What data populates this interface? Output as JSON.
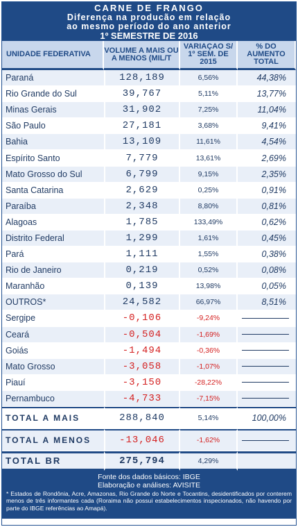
{
  "title": {
    "line1": "CARNE DE FRANGO",
    "line2": "Diferença na producão em relação",
    "line3": "ao mesmo período do ano anterior",
    "line4": "1º SEMESTRE DE 2016"
  },
  "headers": {
    "uf": "UNIDADE FEDERATIVA",
    "volume": "VOLUME A MAIS OU A MENOS (MIL/T",
    "variacao": "VARIAÇAO S/ 1º SEM. DE 2015",
    "aumento": "% DO AUMENTO TOTAL"
  },
  "rows": [
    {
      "uf": "Paraná",
      "volume": "128,189",
      "variacao": "6,56%",
      "aumento": "44,38%"
    },
    {
      "uf": "Rio Grande do Sul",
      "volume": "39,767",
      "variacao": "5,11%",
      "aumento": "13,77%"
    },
    {
      "uf": "Minas Gerais",
      "volume": "31,902",
      "variacao": "7,25%",
      "aumento": "11,04%"
    },
    {
      "uf": "São Paulo",
      "volume": "27,181",
      "variacao": "3,68%",
      "aumento": "9,41%"
    },
    {
      "uf": "Bahia",
      "volume": "13,109",
      "variacao": "11,61%",
      "aumento": "4,54%"
    },
    {
      "uf": "Espírito Santo",
      "volume": "7,779",
      "variacao": "13,61%",
      "aumento": "2,69%"
    },
    {
      "uf": "Mato Grosso do Sul",
      "volume": "6,799",
      "variacao": "9,15%",
      "aumento": "2,35%"
    },
    {
      "uf": "Santa Catarina",
      "volume": "2,629",
      "variacao": "0,25%",
      "aumento": "0,91%"
    },
    {
      "uf": "Paraíba",
      "volume": "2,348",
      "variacao": "8,80%",
      "aumento": "0,81%"
    },
    {
      "uf": "Alagoas",
      "volume": "1,785",
      "variacao": "133,49%",
      "aumento": "0,62%"
    },
    {
      "uf": "Distrito Federal",
      "volume": "1,299",
      "variacao": "1,61%",
      "aumento": "0,45%"
    },
    {
      "uf": "Pará",
      "volume": "1,111",
      "variacao": "1,55%",
      "aumento": "0,38%"
    },
    {
      "uf": "Rio de Janeiro",
      "volume": "0,219",
      "variacao": "0,52%",
      "aumento": "0,08%"
    },
    {
      "uf": "Maranhão",
      "volume": "0,139",
      "variacao": "13,98%",
      "aumento": "0,05%"
    },
    {
      "uf": "OUTROS*",
      "volume": "24,582",
      "variacao": "66,97%",
      "aumento": "8,51%"
    }
  ],
  "negative_rows": [
    {
      "uf": "Sergipe",
      "volume": "-0,106",
      "variacao": "-9,24%"
    },
    {
      "uf": "Ceará",
      "volume": "-0,504",
      "variacao": "-1,69%"
    },
    {
      "uf": "Goiás",
      "volume": "-1,494",
      "variacao": "-0,36%"
    },
    {
      "uf": "Mato Grosso",
      "volume": "-3,058",
      "variacao": "-1,07%"
    },
    {
      "uf": "Piauí",
      "volume": "-3,150",
      "variacao": "-28,22%"
    },
    {
      "uf": "Pernambuco",
      "volume": "-4,733",
      "variacao": "-7,15%"
    }
  ],
  "totals": {
    "mais": {
      "label": "TOTAL A MAIS",
      "volume": "288,840",
      "variacao": "5,14%",
      "aumento": "100,00%"
    },
    "menos": {
      "label": "TOTAL A MENOS",
      "volume": "-13,046",
      "variacao": "-1,62%"
    },
    "br": {
      "label": "TOTAL BR",
      "volume": "275,794",
      "variacao": "4,29%"
    }
  },
  "footer": {
    "fonte": "Fonte dos dados básicos: IBGE",
    "elaboracao": "Elaboração e análises: AVISITE",
    "nota": "* Estados de Rondônia, Acre, Amazonas, Rio Grande do Norte e Tocantins, desidentificados por conterem menos de três informantes cada (Roraima não possui estabelecimentos inspecionados, não havendo por parte do IBGE referências ao Amapá)."
  },
  "colors": {
    "header_blue": "#1f4a86",
    "light_blue": "#c8d7ec",
    "row_stripe": "#e9eff8",
    "negative_red": "#d42020"
  }
}
